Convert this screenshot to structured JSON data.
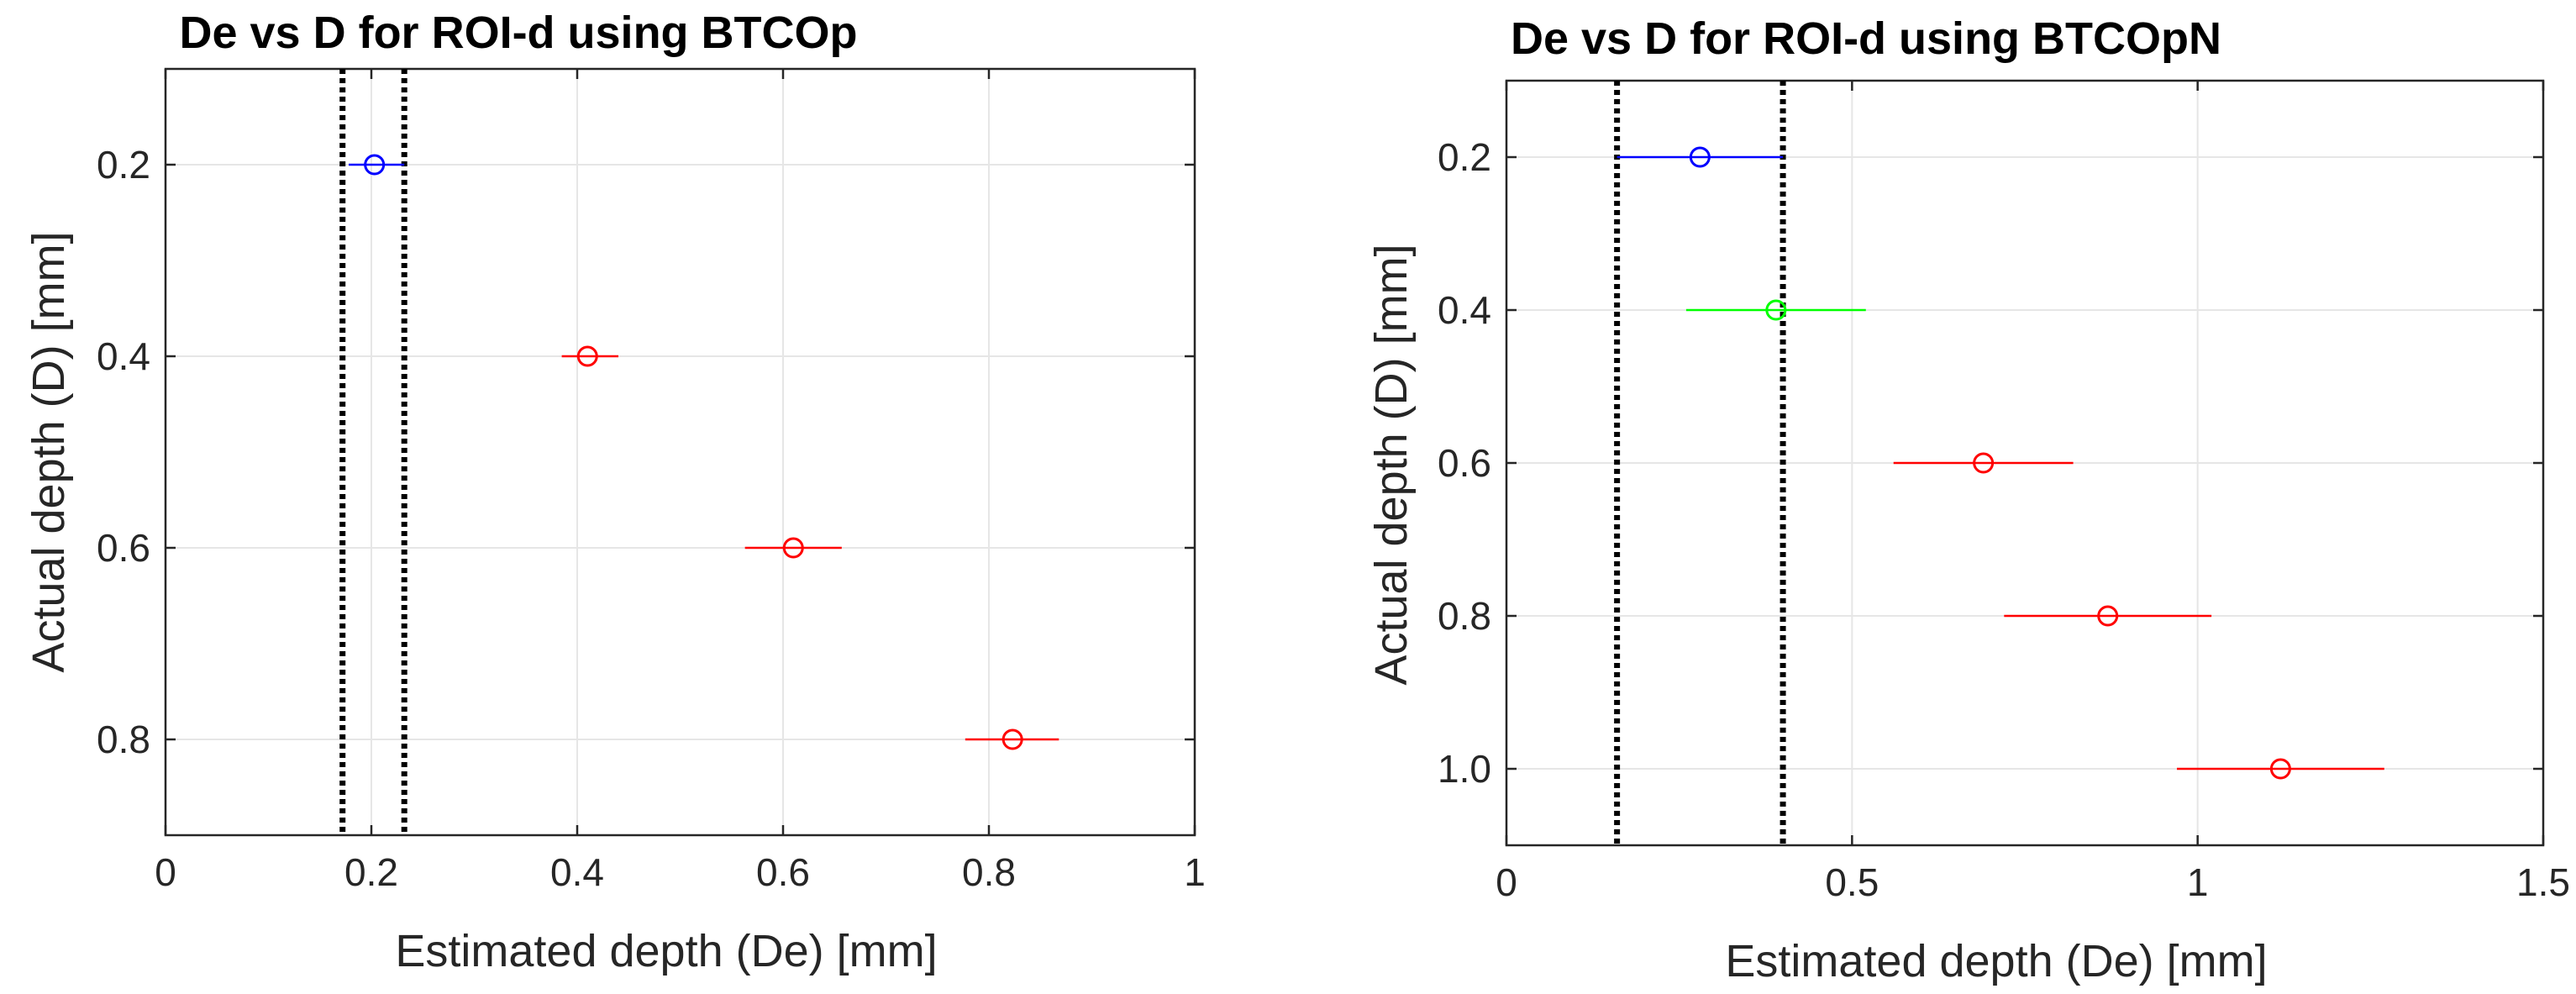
{
  "chart_data": [
    {
      "type": "scatter",
      "title": "De vs D for ROI-d using BTCOp",
      "xlabel": "Estimated depth (De) [mm]",
      "ylabel": "Actual depth (D) [mm]",
      "xlim": [
        0,
        1
      ],
      "ylim": [
        0.1,
        0.9
      ],
      "y_reversed": true,
      "grid": true,
      "xticks": [
        0,
        0.2,
        0.4,
        0.6,
        0.8,
        1
      ],
      "xtick_labels": [
        "0",
        "0.2",
        "0.4",
        "0.6",
        "0.8",
        "1"
      ],
      "yticks": [
        0.2,
        0.4,
        0.6,
        0.8
      ],
      "ytick_labels": [
        "0.2",
        "0.4",
        "0.6",
        "0.8"
      ],
      "threshold_lines_x": [
        0.172,
        0.232
      ],
      "points": [
        {
          "D": 0.2,
          "De": 0.203,
          "err_low": 0.178,
          "err_high": 0.232,
          "color": "#0000ff"
        },
        {
          "D": 0.4,
          "De": 0.41,
          "err_low": 0.385,
          "err_high": 0.44,
          "color": "#ff0000"
        },
        {
          "D": 0.6,
          "De": 0.61,
          "err_low": 0.563,
          "err_high": 0.657,
          "color": "#ff0000"
        },
        {
          "D": 0.8,
          "De": 0.823,
          "err_low": 0.777,
          "err_high": 0.868,
          "color": "#ff0000"
        }
      ]
    },
    {
      "type": "scatter",
      "title": "De vs D for ROI-d using BTCOpN",
      "xlabel": "Estimated depth (De) [mm]",
      "ylabel": "Actual depth (D) [mm]",
      "xlim": [
        0,
        1.5
      ],
      "ylim": [
        0.1,
        1.1
      ],
      "y_reversed": true,
      "grid": true,
      "xticks": [
        0,
        0.5,
        1,
        1.5
      ],
      "xtick_labels": [
        "0",
        "0.5",
        "1",
        "1.5"
      ],
      "yticks": [
        0.2,
        0.4,
        0.6,
        0.8,
        1.0
      ],
      "ytick_labels": [
        "0.2",
        "0.4",
        "0.6",
        "0.8",
        "1.0"
      ],
      "threshold_lines_x": [
        0.16,
        0.4
      ],
      "points": [
        {
          "D": 0.2,
          "De": 0.28,
          "err_low": 0.16,
          "err_high": 0.4,
          "color": "#0000ff"
        },
        {
          "D": 0.4,
          "De": 0.39,
          "err_low": 0.26,
          "err_high": 0.52,
          "color": "#00ff00"
        },
        {
          "D": 0.6,
          "De": 0.69,
          "err_low": 0.56,
          "err_high": 0.82,
          "color": "#ff0000"
        },
        {
          "D": 0.8,
          "De": 0.87,
          "err_low": 0.72,
          "err_high": 1.02,
          "color": "#ff0000"
        },
        {
          "D": 1.0,
          "De": 1.12,
          "err_low": 0.97,
          "err_high": 1.27,
          "color": "#ff0000"
        }
      ]
    }
  ]
}
